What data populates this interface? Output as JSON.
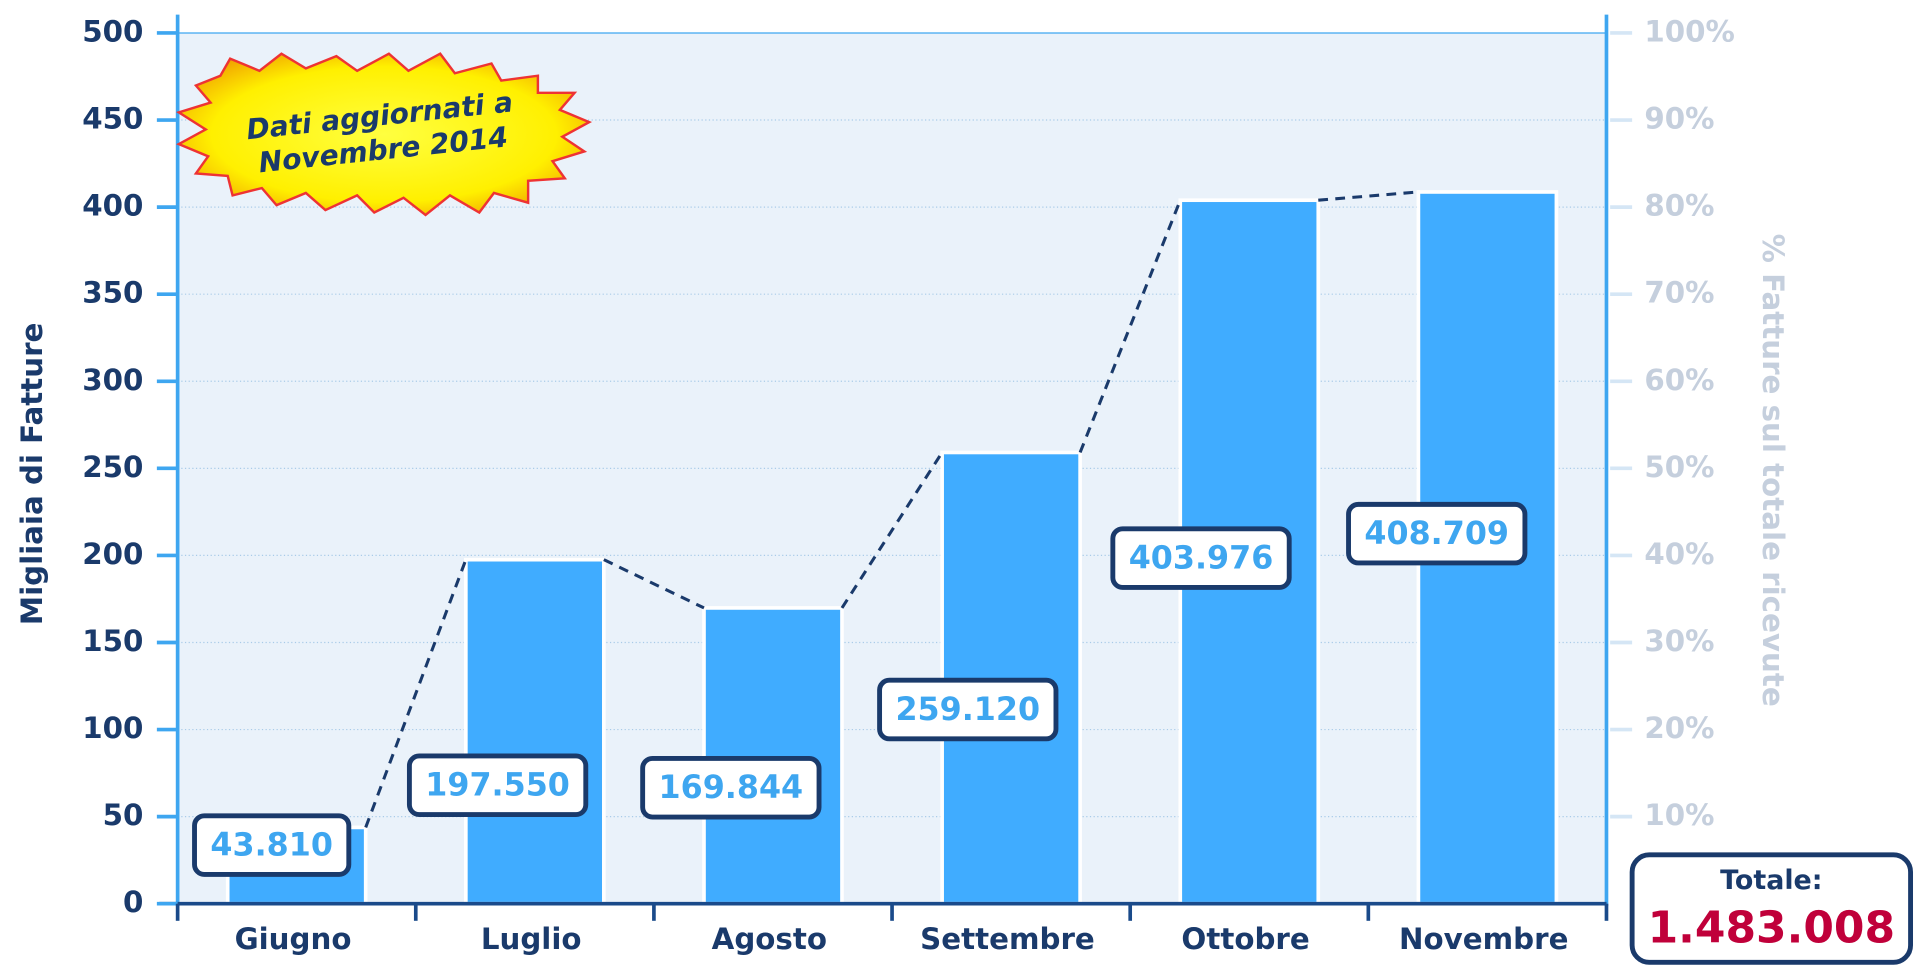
{
  "chart_data": {
    "type": "bar",
    "y_label": "Migliaia di Fatture",
    "y2_label": "% Fatture sul totale ricevute",
    "annotation": [
      "Dati aggiornati a",
      "Novembre 2014"
    ],
    "total_label": "Totale:",
    "total_text": "1.483.008",
    "categories": [
      "Giugno",
      "Luglio",
      "Agosto",
      "Settembre",
      "Ottobre",
      "Novembre"
    ],
    "values": [
      43.81,
      197.55,
      169.844,
      259.12,
      403.976,
      408.709
    ],
    "value_labels": [
      "43.810",
      "197.550",
      "169.844",
      "259.120",
      "403.976",
      "408.709"
    ],
    "color": "#40acff",
    "ylim": [
      0,
      500
    ],
    "yticks": [
      0,
      50,
      100,
      150,
      200,
      250,
      300,
      350,
      400,
      450,
      500
    ],
    "y2lim": [
      0,
      100
    ],
    "y2ticks": [
      {
        "value": 10,
        "label": "10%"
      },
      {
        "value": 20,
        "label": "20%"
      },
      {
        "value": 30,
        "label": "30%"
      },
      {
        "value": 40,
        "label": "40%"
      },
      {
        "value": 50,
        "label": "50%"
      },
      {
        "value": 60,
        "label": "60%"
      },
      {
        "value": 70,
        "label": "70%"
      },
      {
        "value": 80,
        "label": "80%"
      },
      {
        "value": 90,
        "label": "90%"
      },
      {
        "value": 100,
        "label": "100%"
      }
    ],
    "grid": true
  }
}
